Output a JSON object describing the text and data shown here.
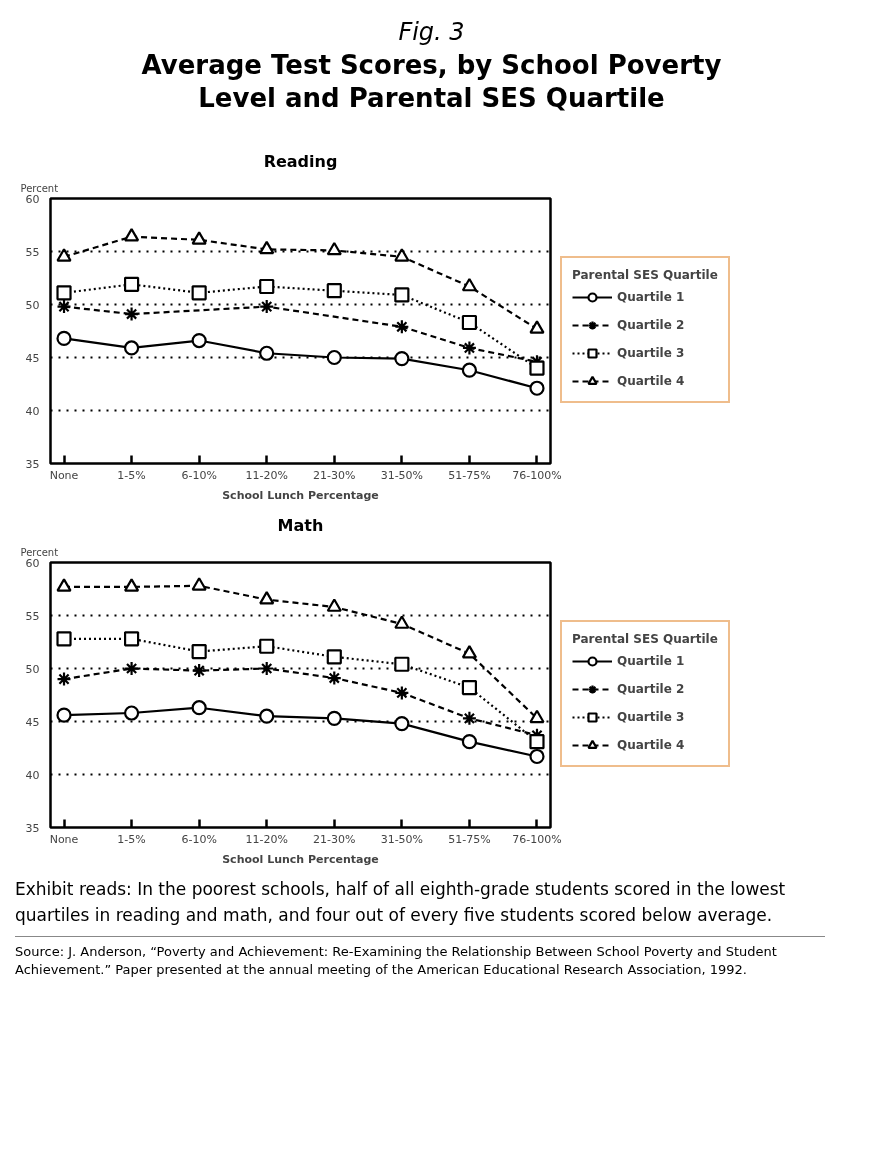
{
  "chart_data": [
    {
      "type": "line",
      "title": "Reading",
      "ylabel": "Percent",
      "xlabel": "School Lunch Percentage",
      "legend_title": "Parental SES Quartile",
      "annotations": [
        "Fig. 3",
        "Average Test Scores, by School Poverty Level and Parental SES Quartile"
      ],
      "categories": [
        "None",
        "1-5%",
        "6-10%",
        "11-20%",
        "21-30%",
        "31-50%",
        "51-75%",
        "76-100%"
      ],
      "ylim": [
        35,
        60
      ],
      "yticks": [
        35,
        40,
        45,
        50,
        55,
        60
      ],
      "grid": "y",
      "legend": "right",
      "series": [
        {
          "name": "Quartile 1",
          "color": "#000000",
          "marker": "circle",
          "line_style": "solid",
          "values": [
            46.8,
            45.9,
            46.6,
            45.4,
            45.0,
            44.9,
            43.8,
            42.1
          ]
        },
        {
          "name": "Quartile 2",
          "color": "#000000",
          "marker": "cross",
          "line_style": "dashed",
          "values": [
            49.8,
            49.1,
            null,
            49.8,
            null,
            47.9,
            45.9,
            44.6
          ]
        },
        {
          "name": "Quartile 3",
          "color": "#000000",
          "marker": "square",
          "line_style": "dotted",
          "values": [
            51.1,
            51.9,
            51.1,
            51.7,
            51.3,
            50.9,
            48.3,
            44.0
          ]
        },
        {
          "name": "Quartile 4",
          "color": "#000000",
          "marker": "triangle",
          "line_style": "dashed",
          "values": [
            54.5,
            56.4,
            56.1,
            55.2,
            55.1,
            54.5,
            51.7,
            47.7
          ]
        }
      ]
    },
    {
      "type": "line",
      "title": "Math",
      "ylabel": "Percent",
      "xlabel": "School Lunch Percentage",
      "legend_title": "Parental SES Quartile",
      "annotations": [
        "Exhibit reads: In the poorest schools, half of all eighth-grade students scored in the lowest quartiles in reading and math, and four out of every five students scored below average.",
        "Source: J. Anderson, “Poverty and Achievement: Re-Examining the Relationship Between School Poverty and Student Achievement.” Paper presented at the annual meeting of the American Educational Research Association, 1992."
      ],
      "categories": [
        "None",
        "1-5%",
        "6-10%",
        "11-20%",
        "21-30%",
        "31-50%",
        "51-75%",
        "76-100%"
      ],
      "ylim": [
        35,
        60
      ],
      "yticks": [
        35,
        40,
        45,
        50,
        55,
        60
      ],
      "grid": "y",
      "legend": "right",
      "series": [
        {
          "name": "Quartile 1",
          "color": "#000000",
          "marker": "circle",
          "line_style": "solid",
          "values": [
            45.6,
            45.8,
            46.3,
            45.5,
            45.3,
            44.8,
            43.1,
            41.7
          ]
        },
        {
          "name": "Quartile 2",
          "color": "#000000",
          "marker": "cross",
          "line_style": "dashed",
          "values": [
            49.0,
            50.0,
            49.8,
            50.0,
            49.1,
            47.7,
            45.3,
            43.7
          ]
        },
        {
          "name": "Quartile 3",
          "color": "#000000",
          "marker": "square",
          "line_style": "dotted",
          "values": [
            52.8,
            52.8,
            51.6,
            52.1,
            51.1,
            50.4,
            48.2,
            43.1
          ]
        },
        {
          "name": "Quartile 4",
          "color": "#000000",
          "marker": "triangle",
          "line_style": "dashed",
          "values": [
            57.7,
            57.7,
            57.8,
            56.5,
            55.8,
            54.2,
            51.4,
            45.3
          ]
        }
      ]
    }
  ]
}
